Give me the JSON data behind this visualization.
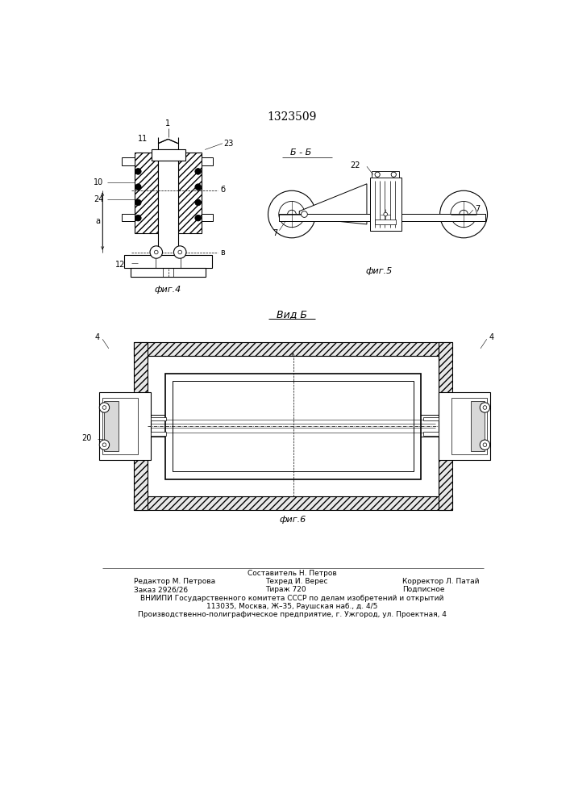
{
  "title": "1323509",
  "fig4_label": "фиг.4",
  "fig5_label": "фиг.5",
  "fig6_label": "фиг.6",
  "vid_b_label": "Вид Б",
  "section_bb_label": "Б - Б",
  "footer_line1": "Составитель Н. Петров",
  "footer_line2a": "Редактор М. Петрова",
  "footer_line2b": "Техред И. Верес",
  "footer_line2c": "Корректор Л. Патай",
  "footer_line3a": "Заказ 2926/26",
  "footer_line3b": "Тираж 720",
  "footer_line3c": "Подписное",
  "footer_line4": "ВНИИПИ Государственного комитета СССР по делам изобретений и открытий",
  "footer_line5": "113035, Москва, Ж–35, Раушская наб., д. 4/5",
  "footer_line6": "Производственно-полиграфическое предприятие, г. Ужгород, ул. Проектная, 4",
  "bg_color": "#ffffff",
  "line_color": "#000000"
}
